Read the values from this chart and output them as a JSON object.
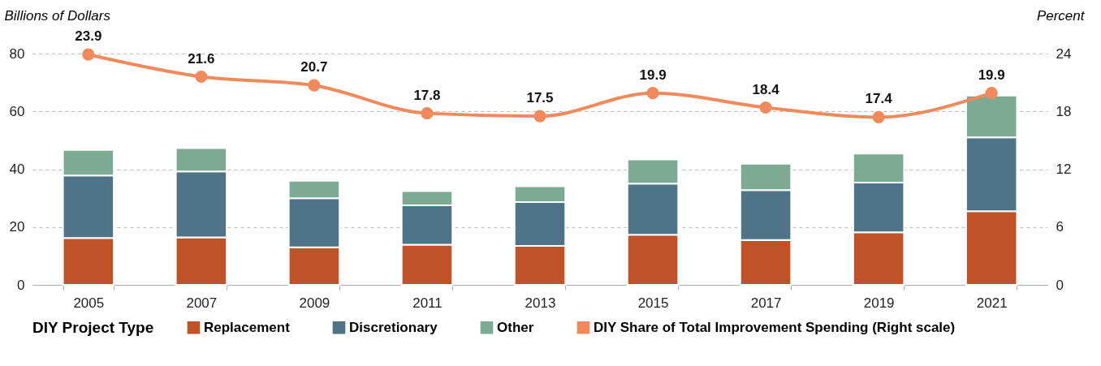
{
  "chart_data": {
    "type": "bar",
    "stacked": true,
    "ylabel": "Billions of Dollars",
    "y2label": "Percent",
    "legend_title": "DIY Project Type",
    "legend": "bottom",
    "grid": "y",
    "categories": [
      "2005",
      "2007",
      "2009",
      "2011",
      "2013",
      "2015",
      "2017",
      "2019",
      "2021"
    ],
    "series": [
      {
        "name": "Replacement",
        "color": "#c05228",
        "values": [
          16.2,
          16.4,
          13.0,
          13.9,
          13.5,
          17.3,
          15.5,
          18.2,
          25.5
        ]
      },
      {
        "name": "Discretionary",
        "color": "#507487",
        "values": [
          21.6,
          22.8,
          17.0,
          13.6,
          15.1,
          17.7,
          17.3,
          17.2,
          25.5
        ]
      },
      {
        "name": "Other",
        "color": "#7daa93",
        "values": [
          8.9,
          8.1,
          6.0,
          4.9,
          5.5,
          8.4,
          9.1,
          10.0,
          14.5
        ]
      },
      {
        "name": "DIY Share of Total Improvement Spending (Right scale)",
        "type": "line",
        "axis": "y2",
        "marker": "circle",
        "color": "#f08a5d",
        "values": [
          23.9,
          21.6,
          20.7,
          17.8,
          17.5,
          19.9,
          18.4,
          17.4,
          19.9
        ],
        "value_labels": [
          "23.9",
          "21.6",
          "20.7",
          "17.8",
          "17.5",
          "19.9",
          "18.4",
          "17.4",
          "19.9"
        ]
      }
    ],
    "ylim": [
      0,
      80
    ],
    "yticks": [
      0,
      20,
      40,
      60,
      80
    ],
    "y2lim": [
      0,
      24
    ],
    "y2ticks": [
      0,
      6,
      12,
      18,
      24
    ]
  }
}
